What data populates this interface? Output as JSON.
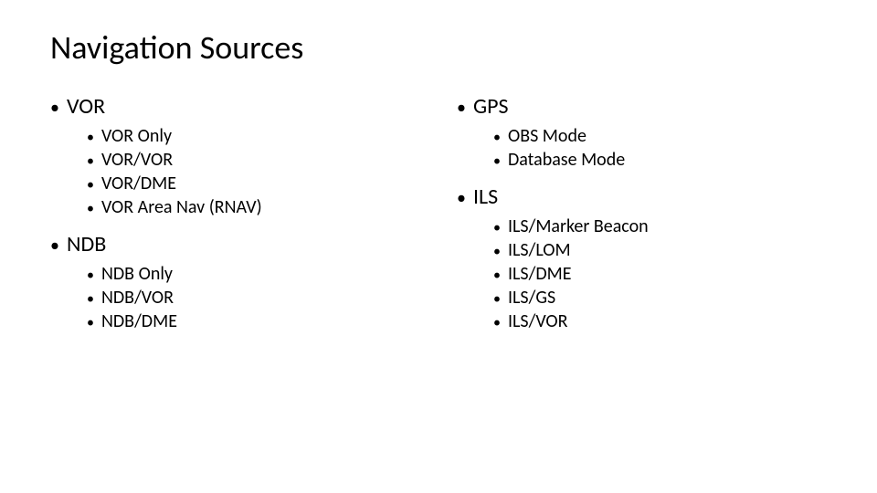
{
  "title": "Navigation Sources",
  "leftColumn": {
    "sections": [
      {
        "label": "VOR",
        "items": [
          "VOR Only",
          "VOR/VOR",
          "VOR/DME",
          "VOR Area Nav (RNAV)"
        ]
      },
      {
        "label": "NDB",
        "items": [
          "NDB Only",
          "NDB/VOR",
          "NDB/DME"
        ]
      }
    ]
  },
  "rightColumn": {
    "sections": [
      {
        "label": "GPS",
        "items": [
          "OBS Mode",
          "Database Mode"
        ]
      },
      {
        "label": "ILS",
        "items": [
          "ILS/Marker Beacon",
          "ILS/LOM",
          "ILS/DME",
          "ILS/GS",
          "ILS/VOR"
        ]
      }
    ]
  },
  "style": {
    "background": "#ffffff",
    "textColor": "#000000",
    "titleFontSize": 36,
    "l1FontSize": 24,
    "l2FontSize": 20,
    "bulletChar": "•"
  }
}
